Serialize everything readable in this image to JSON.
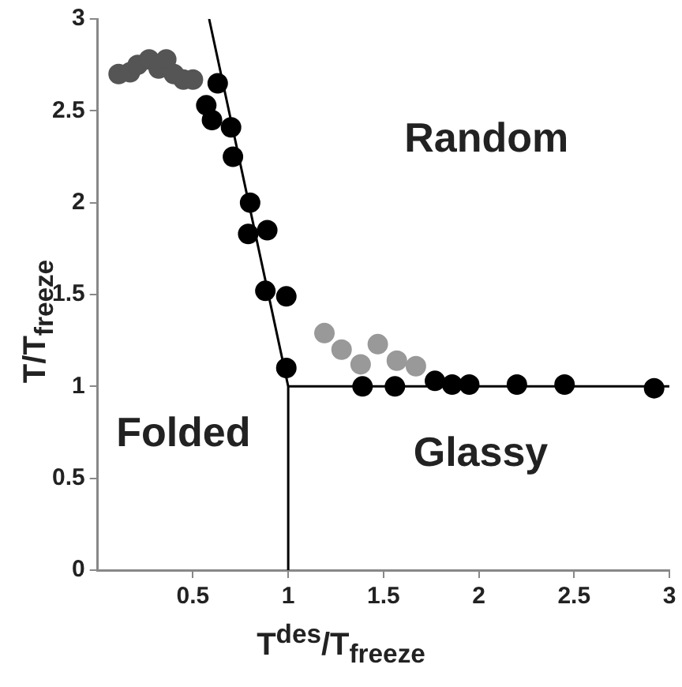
{
  "chart_data": {
    "type": "scatter",
    "xlabel": "T$^{des}$/T$_{freeze}$",
    "ylabel": "T/T$_{freeze}$",
    "xlim": [
      0,
      3
    ],
    "ylim": [
      0,
      3
    ],
    "xticks": [
      0.5,
      1,
      1.5,
      2,
      2.5,
      3
    ],
    "yticks": [
      0,
      0.5,
      1,
      1.5,
      2,
      2.5,
      3
    ],
    "grid": false,
    "legend": false,
    "series": [
      {
        "marker": "circle",
        "color": "#555555",
        "x": [
          0.11,
          0.17,
          0.21,
          0.27,
          0.32,
          0.36,
          0.4,
          0.45,
          0.5
        ],
        "values": [
          2.7,
          2.71,
          2.75,
          2.78,
          2.73,
          2.78,
          2.7,
          2.67,
          2.67
        ]
      },
      {
        "marker": "circle",
        "color": "#000000",
        "x": [
          0.63,
          0.57,
          0.6,
          0.7,
          0.71,
          0.8,
          0.79,
          0.89,
          0.88,
          0.99,
          0.99,
          1.39,
          1.56,
          1.77,
          1.86,
          1.95,
          2.2,
          2.45,
          2.92
        ],
        "values": [
          2.65,
          2.53,
          2.45,
          2.41,
          2.25,
          2.0,
          1.83,
          1.85,
          1.52,
          1.49,
          1.1,
          1.0,
          1.0,
          1.03,
          1.01,
          1.01,
          1.01,
          1.01,
          0.99
        ]
      },
      {
        "marker": "circle",
        "color": "#999999",
        "x": [
          1.19,
          1.28,
          1.38,
          1.47,
          1.57,
          1.67
        ],
        "values": [
          1.29,
          1.2,
          1.12,
          1.23,
          1.14,
          1.11
        ]
      },
      {
        "type": "line",
        "marker": "none",
        "color": "#000000",
        "line_style": "solid",
        "x": [
          0.585,
          1,
          1,
          1,
          3
        ],
        "values": [
          3,
          1,
          0,
          1,
          1
        ]
      }
    ],
    "annotations": [
      "Random",
      "Folded",
      "Glassy"
    ]
  }
}
